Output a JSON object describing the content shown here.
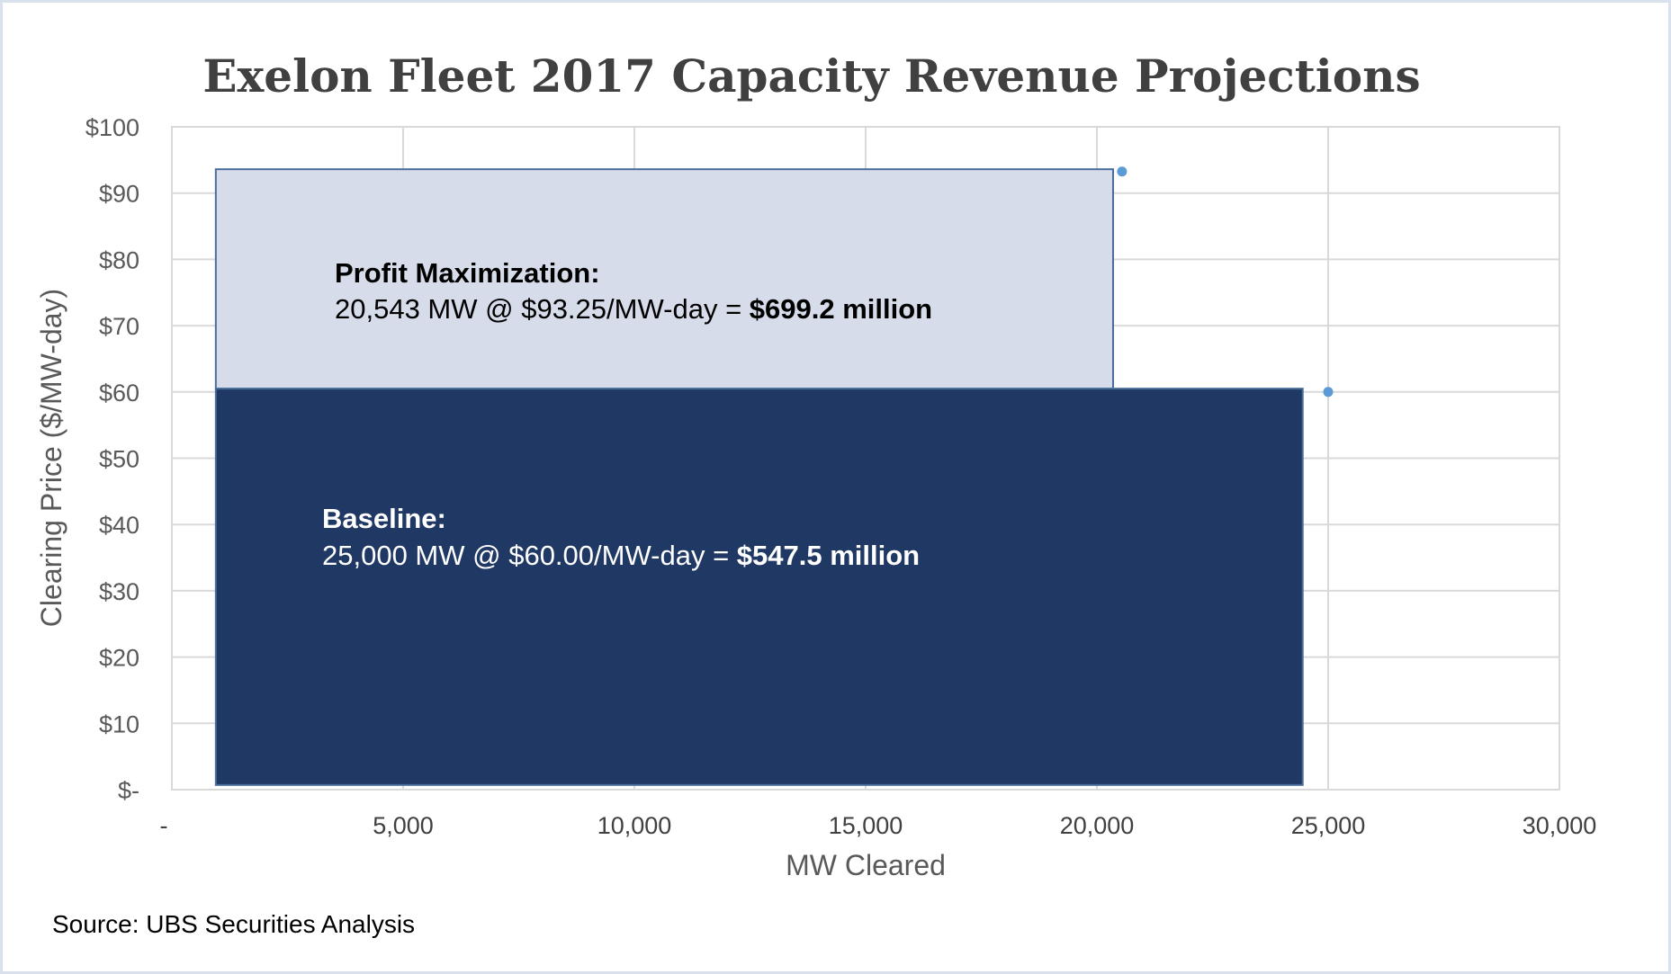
{
  "chart_data": {
    "type": "bar",
    "title": "Exelon Fleet 2017 Capacity Revenue Projections",
    "xlabel": "MW Cleared",
    "ylabel": "Clearing Price ($/MW-day)",
    "xlim": [
      0,
      30000
    ],
    "ylim": [
      0,
      100
    ],
    "x_ticks": [
      {
        "value": 0,
        "label": "-"
      },
      {
        "value": 5000,
        "label": "5,000"
      },
      {
        "value": 10000,
        "label": "10,000"
      },
      {
        "value": 15000,
        "label": "15,000"
      },
      {
        "value": 20000,
        "label": "20,000"
      },
      {
        "value": 25000,
        "label": "25,000"
      },
      {
        "value": 30000,
        "label": "30,000"
      }
    ],
    "y_ticks": [
      {
        "value": 0,
        "label": "$-"
      },
      {
        "value": 10,
        "label": "$10"
      },
      {
        "value": 20,
        "label": "$20"
      },
      {
        "value": 30,
        "label": "$30"
      },
      {
        "value": 40,
        "label": "$40"
      },
      {
        "value": 50,
        "label": "$50"
      },
      {
        "value": 60,
        "label": "$60"
      },
      {
        "value": 70,
        "label": "$70"
      },
      {
        "value": 80,
        "label": "$80"
      },
      {
        "value": 90,
        "label": "$90"
      },
      {
        "value": 100,
        "label": "$100"
      }
    ],
    "grid": true,
    "series": [
      {
        "name": "Profit Maximization",
        "mw": 20543,
        "price": 93.25,
        "revenue_label": "$699.2 million",
        "fill": "#D6DCE9",
        "rect": {
          "x0": 950,
          "x1": 20350,
          "y0": 60.5,
          "y1": 93.6
        },
        "annotation": {
          "heading": "Profit Maximization:",
          "detail": "20,543 MW @ $93.25/MW-day = ",
          "value": "$699.2 million",
          "color": "#000000"
        }
      },
      {
        "name": "Baseline",
        "mw": 25000,
        "price": 60.0,
        "revenue_label": "$547.5 million",
        "fill": "#203864",
        "rect": {
          "x0": 950,
          "x1": 24450,
          "y0": 0.7,
          "y1": 60.5
        },
        "annotation": {
          "heading": "Baseline:",
          "detail": "25,000 MW @ $60.00/MW-day = ",
          "value": "$547.5 million",
          "color": "#FFFFFF"
        }
      }
    ],
    "points": [
      {
        "x": 20543,
        "y": 93.25
      },
      {
        "x": 25000,
        "y": 60.0
      }
    ],
    "colors": {
      "bar_stroke": "#4A6E9B",
      "point": "#5B9BD5",
      "grid": "#D9D9D9",
      "frame": "#D9E1EC"
    }
  },
  "source": "Source: UBS Securities Analysis"
}
